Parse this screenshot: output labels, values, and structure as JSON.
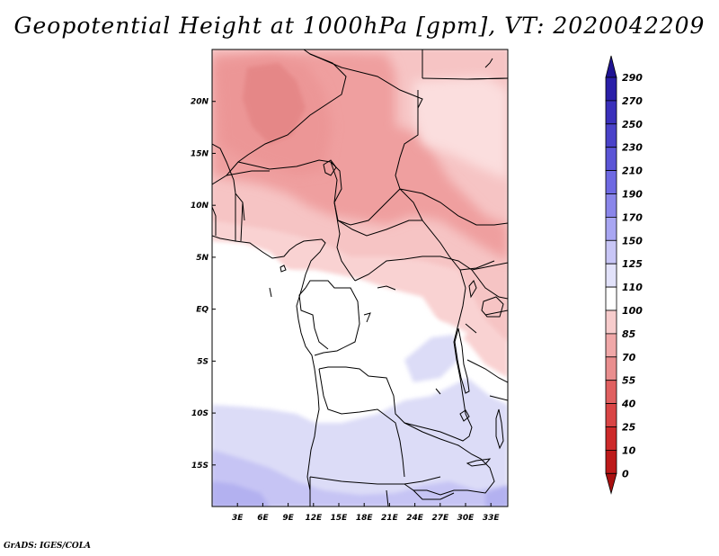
{
  "title": "Geopotential Height at 1000hPa [gpm], VT: 2020042209",
  "credit": "GrADS: IGES/COLA",
  "chart_data": {
    "type": "heatmap",
    "variable": "Geopotential Height",
    "level": "1000hPa",
    "units": "gpm",
    "valid_time": "2020042209",
    "lon_range": [
      0,
      35
    ],
    "lat_range": [
      -19,
      25
    ],
    "x_tick_labels": [
      "3E",
      "6E",
      "9E",
      "12E",
      "15E",
      "18E",
      "21E",
      "24E",
      "27E",
      "30E",
      "33E"
    ],
    "x_tick_values": [
      3,
      6,
      9,
      12,
      15,
      18,
      21,
      24,
      27,
      30,
      33
    ],
    "y_tick_labels": [
      "20N",
      "15N",
      "10N",
      "5N",
      "EQ",
      "5S",
      "10S",
      "15S"
    ],
    "y_tick_values": [
      20,
      15,
      10,
      5,
      0,
      -5,
      -10,
      -15
    ],
    "colorbar": {
      "labels": [
        "290",
        "270",
        "250",
        "230",
        "210",
        "190",
        "170",
        "150",
        "125",
        "110",
        "100",
        "85",
        "70",
        "55",
        "40",
        "25",
        "10",
        "0"
      ],
      "colors": [
        "#1f1393",
        "#2a1fa8",
        "#3a30bb",
        "#4a42c9",
        "#5b55d6",
        "#6e69e2",
        "#8a86ea",
        "#a8a6f2",
        "#c8c6f6",
        "#e2e2fa",
        "#ffffff",
        "#f7cccc",
        "#f0a8a8",
        "#e98e8e",
        "#e06060",
        "#d94545",
        "#cd2a2a",
        "#bd1a1a",
        "#a81010"
      ],
      "extend": "both"
    }
  }
}
